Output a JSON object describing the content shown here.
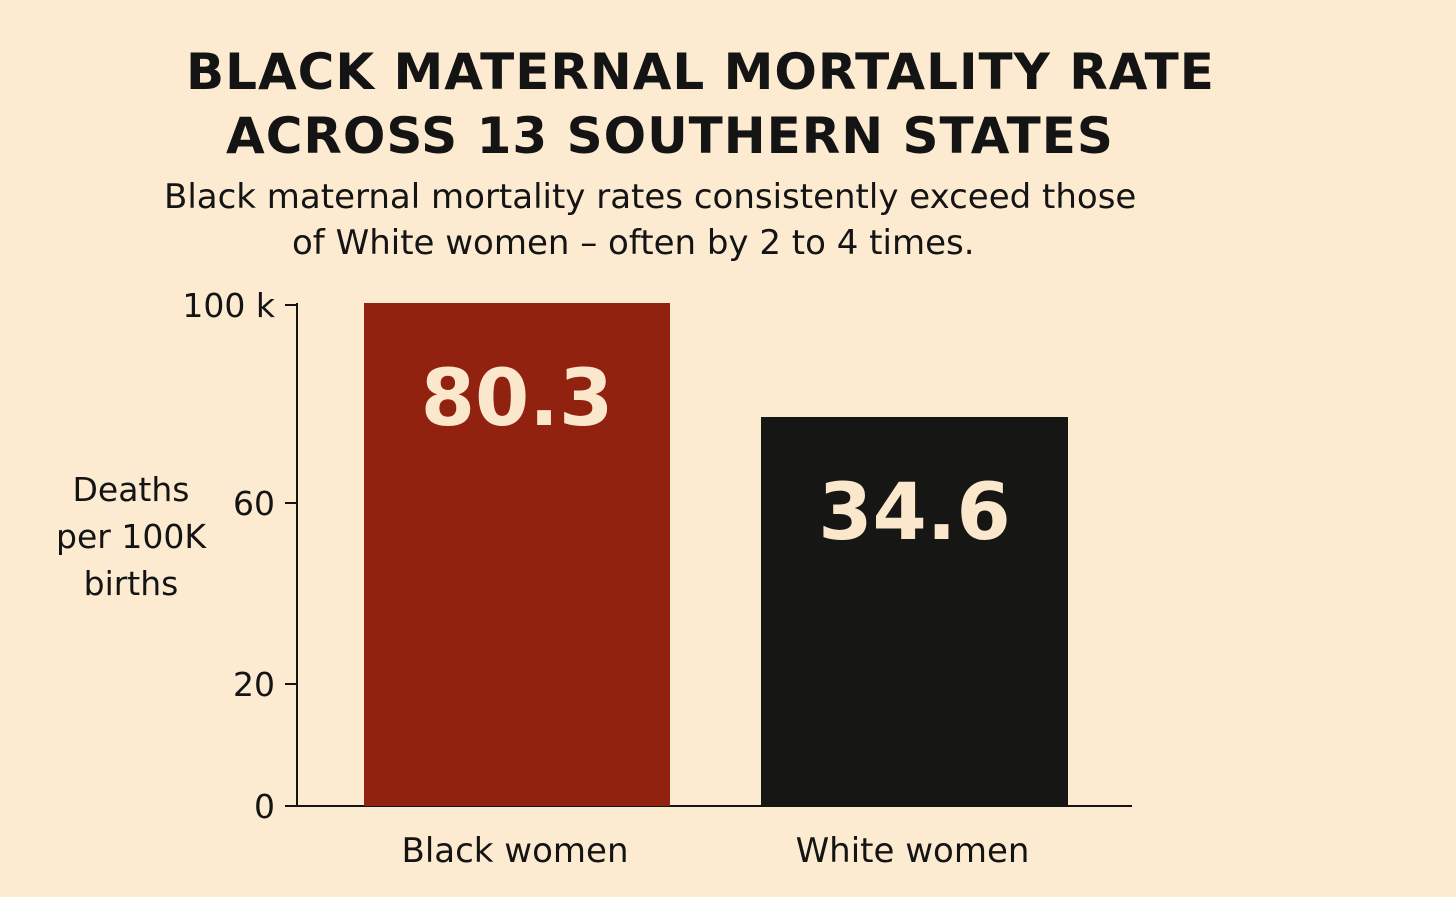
{
  "title": {
    "line1": "BLACK MATERNAL MORTALITY RATE",
    "line2": "ACROSS 13 SOUTHERN STATES"
  },
  "subtitle": {
    "line1": "Black maternal mortality rates consistently exceed those",
    "line2": "of White women – often by 2 to 4 times."
  },
  "chart_data": {
    "type": "bar",
    "title": "BLACK MATERNAL MORTALITY RATE ACROSS 13 SOUTHERN STATES",
    "subtitle": "Black maternal mortality rates consistently exceed those of White women – often by 2 to 4 times.",
    "ylabel": "Deaths\nper 100K\nbirths",
    "xlabel": "",
    "categories": [
      "Black women",
      "White women"
    ],
    "values": [
      80.3,
      34.6
    ],
    "data_labels": [
      "80.3",
      "34.6"
    ],
    "colors": [
      "#912210",
      "#161614"
    ],
    "yticks": [
      {
        "value": 0,
        "label": "0"
      },
      {
        "value": 20,
        "label": "20"
      },
      {
        "value": 60,
        "label": "60"
      },
      {
        "value": 100,
        "label": "100 k"
      }
    ],
    "ylim": [
      0,
      100
    ],
    "grid": false,
    "legend": "none"
  }
}
